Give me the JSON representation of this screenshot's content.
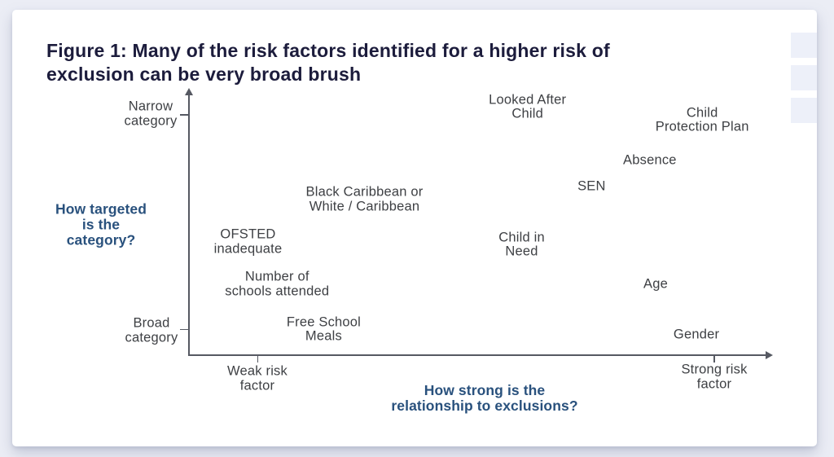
{
  "page": {
    "card_title": "Figure 1: Many of the risk factors identified for a higher risk of\nexclusion can be very broad brush"
  },
  "colors": {
    "page_background": "#ebedf5",
    "card_background": "#ffffff",
    "title_text": "#1c1c3c",
    "axis_question_text": "#29517d",
    "label_text": "#3e4044",
    "axis_line": "#565962",
    "decorative_square": "#edf0f9"
  },
  "decor": {
    "square_count": 3
  },
  "chart_data": {
    "type": "scatter",
    "title": "Figure 1: Many of the risk factors identified for a higher risk of exclusion can be very broad brush",
    "grid": false,
    "legend": false,
    "x_axis": {
      "title": "How strong is the\nrelationship to exclusions?",
      "low_label": "Weak risk\nfactor",
      "high_label": "Strong risk\nfactor",
      "range": [
        0,
        100
      ]
    },
    "y_axis": {
      "title": "How targeted\nis the\ncategory?",
      "low_label": "Broad\ncategory",
      "high_label": "Narrow\ncategory",
      "range": [
        0,
        100
      ]
    },
    "points": [
      {
        "label": "Looked After\nChild",
        "x": 58,
        "y": 94
      },
      {
        "label": "Child\nProtection Plan",
        "x": 88,
        "y": 89
      },
      {
        "label": "Absence",
        "x": 79,
        "y": 74
      },
      {
        "label": "SEN",
        "x": 69,
        "y": 64
      },
      {
        "label": "Black Caribbean or\nWhite / Caribbean",
        "x": 30,
        "y": 59
      },
      {
        "label": "OFSTED\ninadequate",
        "x": 10,
        "y": 43
      },
      {
        "label": "Child in\nNeed",
        "x": 57,
        "y": 42
      },
      {
        "label": "Number of\nschools attended",
        "x": 15,
        "y": 27
      },
      {
        "label": "Age",
        "x": 80,
        "y": 27
      },
      {
        "label": "Free School\nMeals",
        "x": 23,
        "y": 10
      },
      {
        "label": "Gender",
        "x": 87,
        "y": 8
      }
    ]
  }
}
